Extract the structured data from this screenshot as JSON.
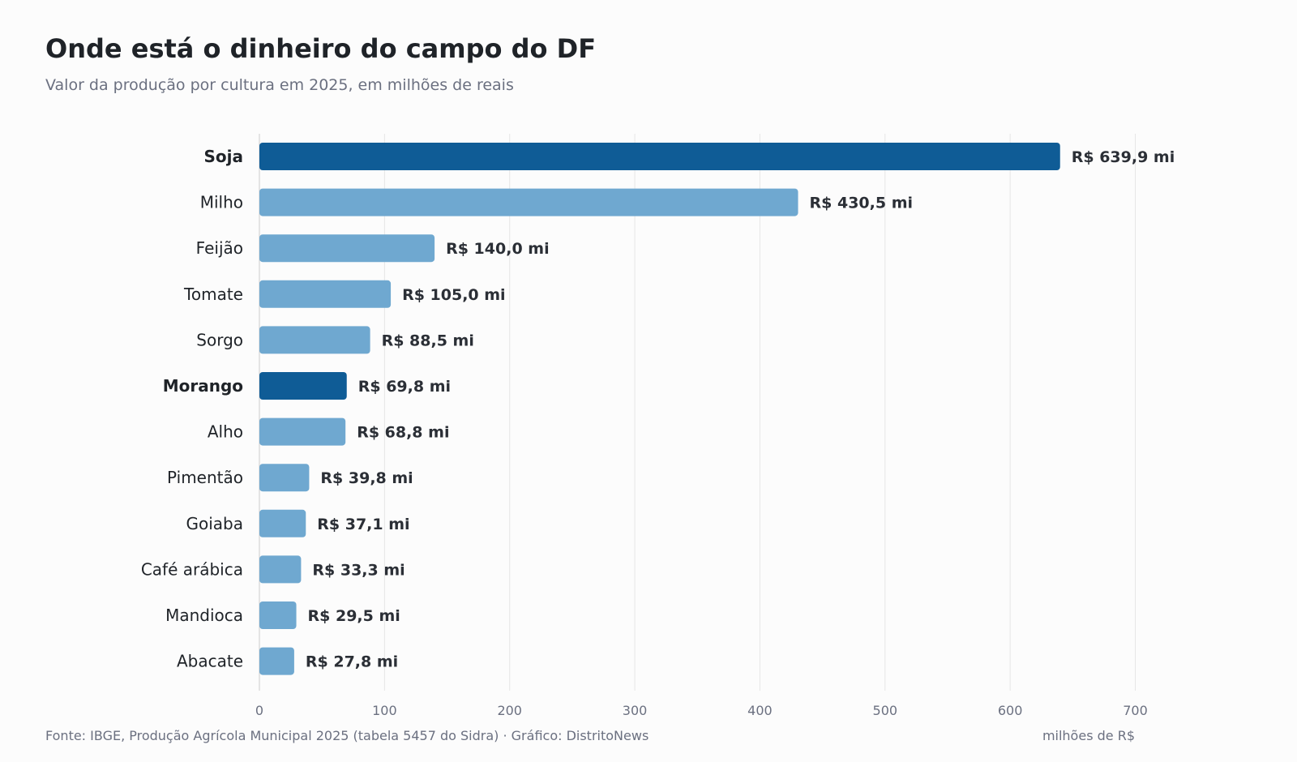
{
  "chart_data": {
    "type": "bar",
    "orientation": "horizontal",
    "title": "Onde está o dinheiro do campo do DF",
    "subtitle": "Valor da produção por cultura em 2025, em milhões de reais",
    "categories": [
      "Soja",
      "Milho",
      "Feijão",
      "Tomate",
      "Sorgo",
      "Morango",
      "Alho",
      "Pimentão",
      "Goiaba",
      "Café arábica",
      "Mandioca",
      "Abacate"
    ],
    "values": [
      639.9,
      430.5,
      140.0,
      105.0,
      88.5,
      69.8,
      68.8,
      39.8,
      37.1,
      33.3,
      29.5,
      27.8
    ],
    "value_labels": [
      "R$ 639,9 mi",
      "R$ 430,5 mi",
      "R$ 140,0 mi",
      "R$ 105,0 mi",
      "R$ 88,5 mi",
      "R$ 69,8 mi",
      "R$ 68,8 mi",
      "R$ 39,8 mi",
      "R$ 37,1 mi",
      "R$ 33,3 mi",
      "R$ 29,5 mi",
      "R$ 27,8 mi"
    ],
    "highlighted": [
      "Soja",
      "Morango"
    ],
    "xlabel": "milhões de R$",
    "ylabel": "",
    "xlim": [
      0,
      700
    ],
    "xticks": [
      0,
      100,
      200,
      300,
      400,
      500,
      600,
      700
    ],
    "grid": "vertical",
    "colors": {
      "highlight": "#0f5c96",
      "default": "#6fa8d0"
    }
  },
  "footer": {
    "source": "Fonte: IBGE, Produção Agrícola Municipal 2025 (tabela 5457 do Sidra)  ·  Gráfico: DistritoNews"
  }
}
